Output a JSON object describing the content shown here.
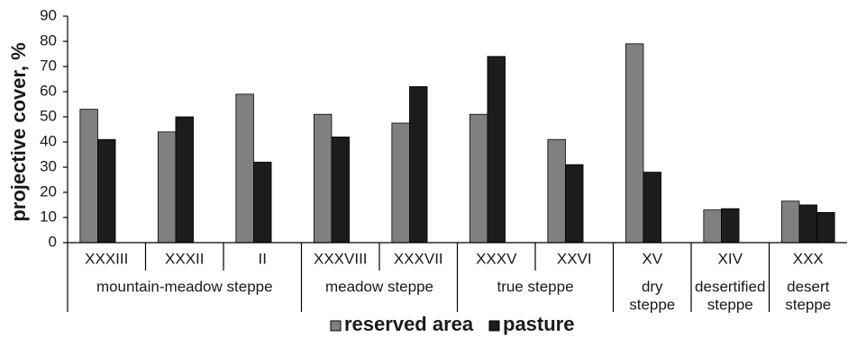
{
  "chart_data": {
    "type": "bar",
    "categories": [
      "XXXIII",
      "XXXII",
      "II",
      "XXXVIII",
      "XXXVII",
      "XXXV",
      "XXVI",
      "XV",
      "XIV",
      "XXX"
    ],
    "groups": [
      {
        "label": [
          "mountain-meadow steppe"
        ],
        "members": [
          0,
          1,
          2
        ]
      },
      {
        "label": [
          "meadow steppe"
        ],
        "members": [
          3,
          4
        ]
      },
      {
        "label": [
          "true steppe"
        ],
        "members": [
          5,
          6
        ]
      },
      {
        "label": [
          "dry",
          "steppe"
        ],
        "members": [
          7
        ]
      },
      {
        "label": [
          "desertified",
          "steppe"
        ],
        "members": [
          8
        ]
      },
      {
        "label": [
          "desert",
          "steppe"
        ],
        "members": [
          9
        ]
      }
    ],
    "series": [
      {
        "name": "reserved area",
        "color": "#808080",
        "values": [
          53,
          44,
          59,
          51,
          47.5,
          51,
          41,
          79,
          13,
          16.5
        ]
      },
      {
        "name": "pasture",
        "color": "#1c1c1c",
        "values": [
          41,
          50,
          32,
          42,
          62,
          74,
          31,
          28,
          13.5,
          15
        ]
      },
      {
        "name": "",
        "color": "#1c1c1c",
        "values": [
          null,
          null,
          null,
          null,
          null,
          null,
          null,
          null,
          null,
          12
        ]
      }
    ],
    "ylabel": "projective cover, %",
    "ylim": [
      0,
      90
    ],
    "yticks": [
      0,
      10,
      20,
      30,
      40,
      50,
      60,
      70,
      80,
      90
    ],
    "grid": false,
    "legend": "bottom"
  }
}
